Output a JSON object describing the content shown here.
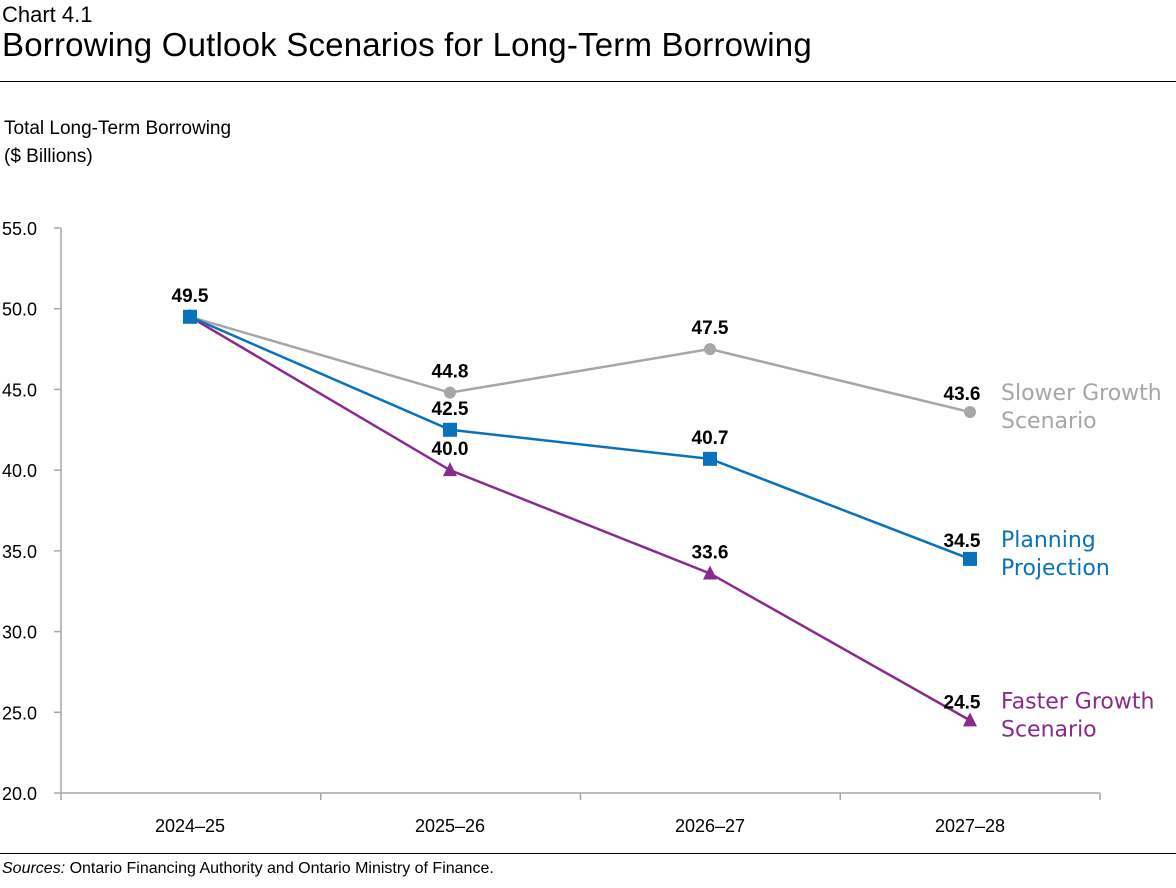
{
  "header": {
    "chart_number": "Chart 4.1",
    "title": "Borrowing Outlook Scenarios for Long-Term Borrowing"
  },
  "footer": {
    "sources_label": "Sources:",
    "sources_text": " Ontario Financing Authority and Ontario Ministry of Finance."
  },
  "chart_data": {
    "type": "line",
    "title": "Borrowing Outlook Scenarios for Long-Term Borrowing",
    "ylabel": [
      "Total Long-Term Borrowing",
      "($ Billions)"
    ],
    "xlabel": "",
    "categories": [
      "2024–25",
      "2025–26",
      "2026–27",
      "2027–28"
    ],
    "ylim": [
      20,
      55
    ],
    "yticks": [
      "20.0",
      "25.0",
      "30.0",
      "35.0",
      "40.0",
      "45.0",
      "50.0",
      "55.0"
    ],
    "grid": false,
    "legend": "inline-right",
    "series": [
      {
        "name": [
          "Slower Growth",
          "Scenario"
        ],
        "values": [
          49.5,
          44.8,
          47.5,
          43.6
        ],
        "color": "#a6a6a6",
        "marker": "circle"
      },
      {
        "name": [
          "Planning",
          "Projection"
        ],
        "values": [
          49.5,
          42.5,
          40.7,
          34.5
        ],
        "color": "#0a72bb",
        "marker": "square"
      },
      {
        "name": [
          "Faster Growth",
          "Scenario"
        ],
        "values": [
          49.5,
          40.0,
          33.6,
          24.5
        ],
        "color": "#8b2a8e",
        "marker": "triangle"
      }
    ]
  }
}
